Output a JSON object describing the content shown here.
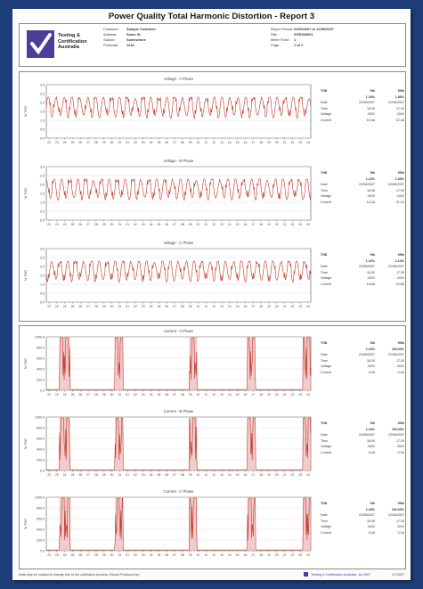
{
  "document": {
    "title": "Power Quality Total Harmonic Distortion - Report 3",
    "logo_text": "Testing &\nCertification\nAustralia",
    "meta_left": [
      {
        "key": "Customer:",
        "value": "Sample Customer"
      },
      {
        "key": "Address:",
        "value": "Some St."
      },
      {
        "key": "Suburb:",
        "value": "Somewhere"
      },
      {
        "key": "Postcode:",
        "value": "1234"
      }
    ],
    "meta_right": [
      {
        "key": "Report Period:",
        "value": "01/06/2007 to 22/06/2007"
      },
      {
        "key": "Site:",
        "value": "SITE000001"
      },
      {
        "key": "Meter Point:",
        "value": "1"
      },
      {
        "key": "Page:",
        "value": "1 of 1"
      }
    ],
    "footer": {
      "left": "Data may be subject to change due to the calibration process. Report Produced by:",
      "mid": "Testing & Certification Australia, Jul 2007",
      "right": "1/7/2007"
    }
  },
  "voltage_charts": [
    {
      "title": "Voltage - A Phase",
      "ylabel": "% THD",
      "ticks": [
        "3.0",
        "2.5",
        "2.0",
        "1.5",
        "1.0",
        "0.5",
        "0.0"
      ],
      "table": {
        "header": [
          "THD",
          "5th",
          "95th"
        ],
        "pct": [
          "",
          "1.18%",
          "1.86%"
        ],
        "rows": [
          [
            "Date",
            "22/06/2007",
            "22/06/2007"
          ],
          [
            "Time",
            "16:30",
            "17:30"
          ],
          [
            "Voltage",
            "240V",
            "240V"
          ],
          [
            "Current",
            "15.6A",
            "22.4A"
          ]
        ]
      }
    },
    {
      "title": "Voltage - B Phase",
      "ylabel": "% THD",
      "ticks": [
        "3.0",
        "2.5",
        "2.0",
        "1.5",
        "1.0",
        "0.5",
        "0.0"
      ],
      "table": {
        "header": [
          "THD",
          "5th",
          "95th"
        ],
        "pct": [
          "",
          "1.12%",
          "1.93%"
        ],
        "rows": [
          [
            "Date",
            "22/06/2007",
            "22/06/2007"
          ],
          [
            "Time",
            "16:30",
            "17:30"
          ],
          [
            "Voltage",
            "240V",
            "240V"
          ],
          [
            "Current",
            "14.2A",
            "21.1A"
          ]
        ]
      }
    },
    {
      "title": "Voltage - C Phase",
      "ylabel": "% THD",
      "ticks": [
        "3.0",
        "2.5",
        "2.0",
        "1.5",
        "1.0",
        "0.5",
        "0.0"
      ],
      "table": {
        "header": [
          "THD",
          "5th",
          "95th"
        ],
        "pct": [
          "",
          "1.16%",
          "2.14%"
        ],
        "rows": [
          [
            "Date",
            "22/06/2007",
            "22/06/2007"
          ],
          [
            "Time",
            "16:30",
            "17:30"
          ],
          [
            "Voltage",
            "240V",
            "240V"
          ],
          [
            "Current",
            "16.8A",
            "20.5A"
          ]
        ]
      }
    }
  ],
  "current_charts": [
    {
      "title": "Current - A Phase",
      "ylabel": "% THD",
      "ticks": [
        "1000.0",
        "800.0",
        "600.0",
        "400.0",
        "200.0",
        "0.0"
      ],
      "table": {
        "header": [
          "THD",
          "5th",
          "95th"
        ],
        "pct": [
          "",
          "2.20%",
          "100.00%"
        ],
        "rows": [
          [
            "Date",
            "22/06/2007",
            "22/06/2007"
          ],
          [
            "Time",
            "16:30",
            "17:30"
          ],
          [
            "Voltage",
            "240V",
            "240V"
          ],
          [
            "Current",
            "0.0A",
            "0.0A"
          ]
        ]
      }
    },
    {
      "title": "Current - B Phase",
      "ylabel": "% THD",
      "ticks": [
        "1000.0",
        "800.0",
        "600.0",
        "400.0",
        "200.0",
        "0.0"
      ],
      "table": {
        "header": [
          "THD",
          "5th",
          "95th"
        ],
        "pct": [
          "",
          "2.18%",
          "100.00%"
        ],
        "rows": [
          [
            "Date",
            "22/06/2007",
            "22/06/2007"
          ],
          [
            "Time",
            "16:30",
            "17:30"
          ],
          [
            "Voltage",
            "240V",
            "240V"
          ],
          [
            "Current",
            "0.0A",
            "0.0A"
          ]
        ]
      }
    },
    {
      "title": "Current - C Phase",
      "ylabel": "% THD",
      "ticks": [
        "1000.0",
        "800.0",
        "600.0",
        "400.0",
        "200.0",
        "0.0"
      ],
      "table": {
        "header": [
          "THD",
          "5th",
          "95th"
        ],
        "pct": [
          "",
          "2.25%",
          "100.00%"
        ],
        "rows": [
          [
            "Date",
            "22/06/2007",
            "22/06/2007"
          ],
          [
            "Time",
            "16:30",
            "17:30"
          ],
          [
            "Voltage",
            "240V",
            "240V"
          ],
          [
            "Current",
            "0.0A",
            "0.0A"
          ]
        ]
      }
    }
  ],
  "x_ticks": [
    "22",
    "23",
    "24",
    "25",
    "26",
    "27",
    "28",
    "29",
    "30",
    "31",
    "01",
    "02",
    "03",
    "04",
    "05",
    "06",
    "07",
    "08",
    "09",
    "10",
    "11",
    "12",
    "13",
    "14",
    "15",
    "16",
    "17",
    "18",
    "19",
    "20",
    "21",
    "22",
    "23",
    "24"
  ],
  "colors": {
    "trace": "#c0392b",
    "band": "#e8a0a0",
    "plot_bg": "#ffffff",
    "grid": "#d8d8d8",
    "accent": "#4d3d96",
    "backdrop": "#1d3e78"
  }
}
